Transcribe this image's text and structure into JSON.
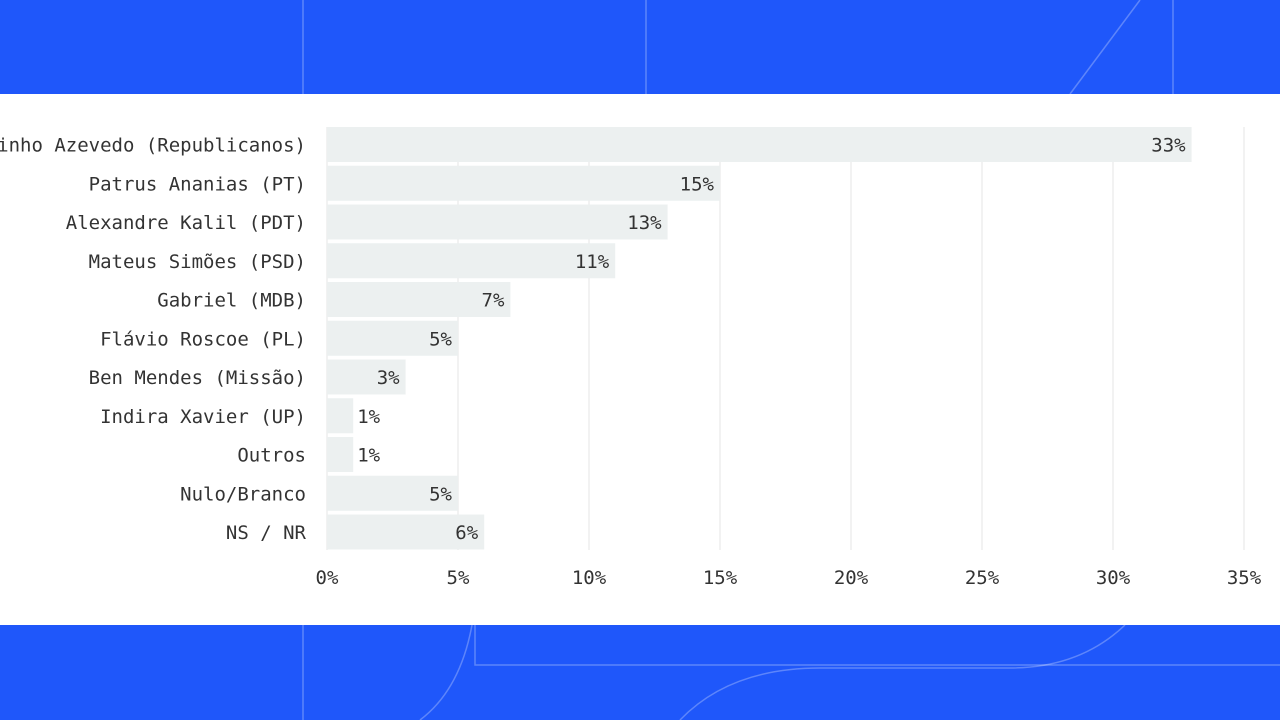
{
  "colors": {
    "background": "#1f57fa",
    "panel": "#ffffff",
    "bar": "#ecf0f0",
    "grid": "#e4e4e4",
    "text": "#333333"
  },
  "chart_data": {
    "type": "bar",
    "orientation": "horizontal",
    "categories": [
      "Cleitinho Azevedo (Republicanos)",
      "Patrus Ananias (PT)",
      "Alexandre Kalil (PDT)",
      "Mateus Simões (PSD)",
      "Gabriel (MDB)",
      "Flávio Roscoe (PL)",
      "Ben Mendes (Missão)",
      "Indira Xavier (UP)",
      "Outros",
      "Nulo/Branco",
      "NS / NR"
    ],
    "values": [
      33,
      15,
      13,
      11,
      7,
      5,
      3,
      1,
      1,
      5,
      6
    ],
    "value_labels": [
      "33%",
      "15%",
      "13%",
      "11%",
      "7%",
      "5%",
      "3%",
      "1%",
      "1%",
      "5%",
      "6%"
    ],
    "x_ticks": [
      "0%",
      "5%",
      "10%",
      "15%",
      "20%",
      "25%",
      "30%",
      "35%"
    ],
    "xlim": [
      0,
      35
    ],
    "grid": true,
    "legend": false
  }
}
